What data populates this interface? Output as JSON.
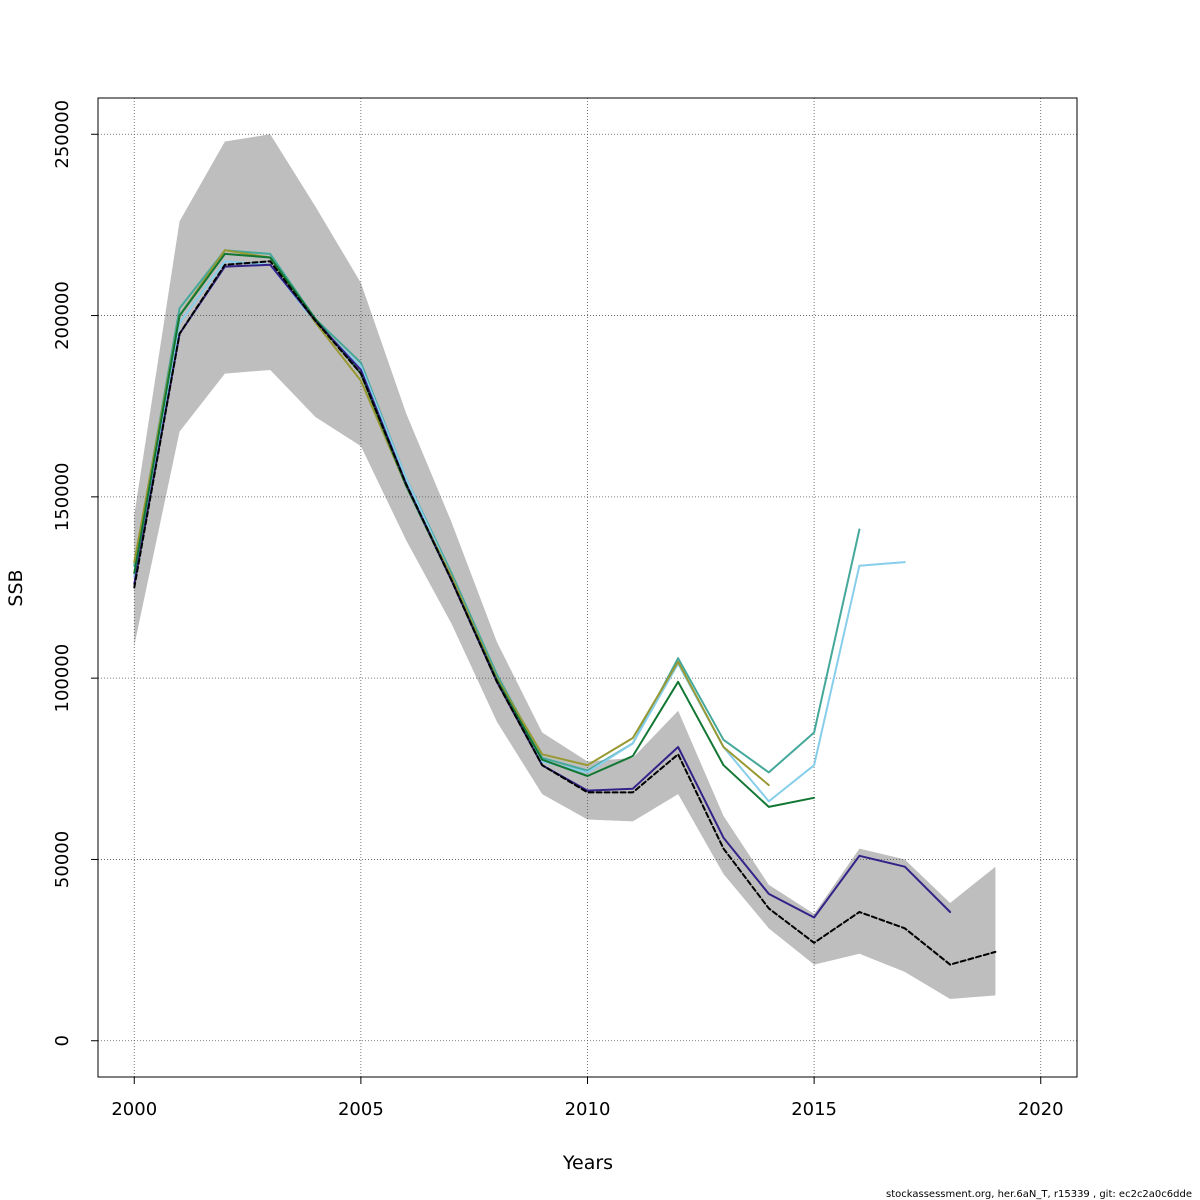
{
  "chart_data": {
    "type": "line",
    "xlabel": "Years",
    "ylabel": "SSB",
    "xlim": [
      1999.2,
      2020.8
    ],
    "ylim": [
      -10000,
      260000
    ],
    "x_ticks": [
      2000,
      2005,
      2010,
      2015,
      2020
    ],
    "x_tick_labels": [
      "2000",
      "2005",
      "2010",
      "2015",
      "2020"
    ],
    "y_ticks": [
      0,
      50000,
      100000,
      150000,
      200000,
      250000
    ],
    "y_tick_labels": [
      "0",
      "50000",
      "100000",
      "150000",
      "200000",
      "250000"
    ],
    "grid": true,
    "confidence_band": {
      "color": "#bebebe",
      "x": [
        2000,
        2001,
        2002,
        2003,
        2004,
        2005,
        2006,
        2007,
        2008,
        2009,
        2010,
        2011,
        2012,
        2013,
        2014,
        2015,
        2016,
        2017,
        2018,
        2019
      ],
      "upper": [
        145000,
        226000,
        248000,
        250000,
        230000,
        209000,
        173000,
        143000,
        110000,
        85000,
        77000,
        78000,
        91000,
        62000,
        43000,
        35000,
        53000,
        50000,
        38000,
        48000
      ],
      "lower": [
        109000,
        168000,
        184000,
        185000,
        172000,
        164000,
        138000,
        115000,
        88000,
        68000,
        61000,
        60500,
        68000,
        46000,
        31000,
        21000,
        24000,
        19000,
        11500,
        12500
      ]
    },
    "series": [
      {
        "color": "#44a89a",
        "width": 2,
        "dash": "",
        "x": [
          2000,
          2001,
          2002,
          2003,
          2004,
          2005,
          2006,
          2007,
          2008,
          2009,
          2010,
          2011,
          2012,
          2013,
          2014,
          2015,
          2016
        ],
        "values": [
          131000,
          202000,
          218000,
          217000,
          199000,
          187000,
          155000,
          129000,
          101000,
          78000,
          74500,
          82000,
          105500,
          83000,
          74000,
          85000,
          141000
        ]
      },
      {
        "color": "#87ceeb",
        "width": 2,
        "dash": "",
        "x": [
          2000,
          2001,
          2002,
          2003,
          2004,
          2005,
          2006,
          2007,
          2008,
          2009,
          2010,
          2011,
          2012,
          2013,
          2014,
          2015,
          2016,
          2017
        ],
        "values": [
          128000,
          198000,
          215000,
          214000,
          198000,
          186000,
          155000,
          128000,
          100000,
          77000,
          74000,
          82000,
          104000,
          81000,
          66000,
          76000,
          131000,
          132000
        ]
      },
      {
        "color": "#999933",
        "width": 2,
        "dash": "",
        "x": [
          2000,
          2001,
          2002,
          2003,
          2004,
          2005,
          2006,
          2007,
          2008,
          2009,
          2010,
          2011,
          2012,
          2013,
          2014
        ],
        "values": [
          132000,
          200000,
          218000,
          216000,
          198000,
          182000,
          153000,
          128000,
          100000,
          79000,
          76000,
          83500,
          104500,
          81000,
          70500
        ]
      },
      {
        "color": "#117733",
        "width": 2,
        "dash": "",
        "x": [
          2000,
          2001,
          2002,
          2003,
          2004,
          2005,
          2006,
          2007,
          2008,
          2009,
          2010,
          2011,
          2012,
          2013,
          2014,
          2015
        ],
        "values": [
          129000,
          200000,
          217000,
          216000,
          199000,
          184000,
          153000,
          127000,
          99500,
          77500,
          73000,
          78500,
          99000,
          76000,
          64500,
          67000
        ]
      },
      {
        "color": "#332288",
        "width": 2,
        "dash": "",
        "x": [
          2000,
          2001,
          2002,
          2003,
          2004,
          2005,
          2006,
          2007,
          2008,
          2009,
          2010,
          2011,
          2012,
          2013,
          2014,
          2015,
          2016,
          2017,
          2018
        ],
        "values": [
          126000,
          195000,
          213500,
          214000,
          198500,
          185000,
          153500,
          127000,
          99000,
          76000,
          69000,
          69500,
          81000,
          56000,
          40500,
          34000,
          51000,
          48000,
          35500
        ]
      },
      {
        "color": "#000000",
        "width": 2,
        "dash": "5 3",
        "x": [
          2000,
          2001,
          2002,
          2003,
          2004,
          2005,
          2006,
          2007,
          2008,
          2009,
          2010,
          2011,
          2012,
          2013,
          2014,
          2015,
          2016,
          2017,
          2018,
          2019
        ],
        "values": [
          125000,
          195000,
          214000,
          215000,
          198500,
          184000,
          153500,
          127000,
          99000,
          76000,
          68500,
          68500,
          79000,
          53000,
          36500,
          27000,
          35500,
          31000,
          21000,
          24500
        ]
      }
    ]
  },
  "footer": {
    "text": "stockassessment.org, her.6aN_T, r15339 , git: ec2c2a0c6dde"
  }
}
